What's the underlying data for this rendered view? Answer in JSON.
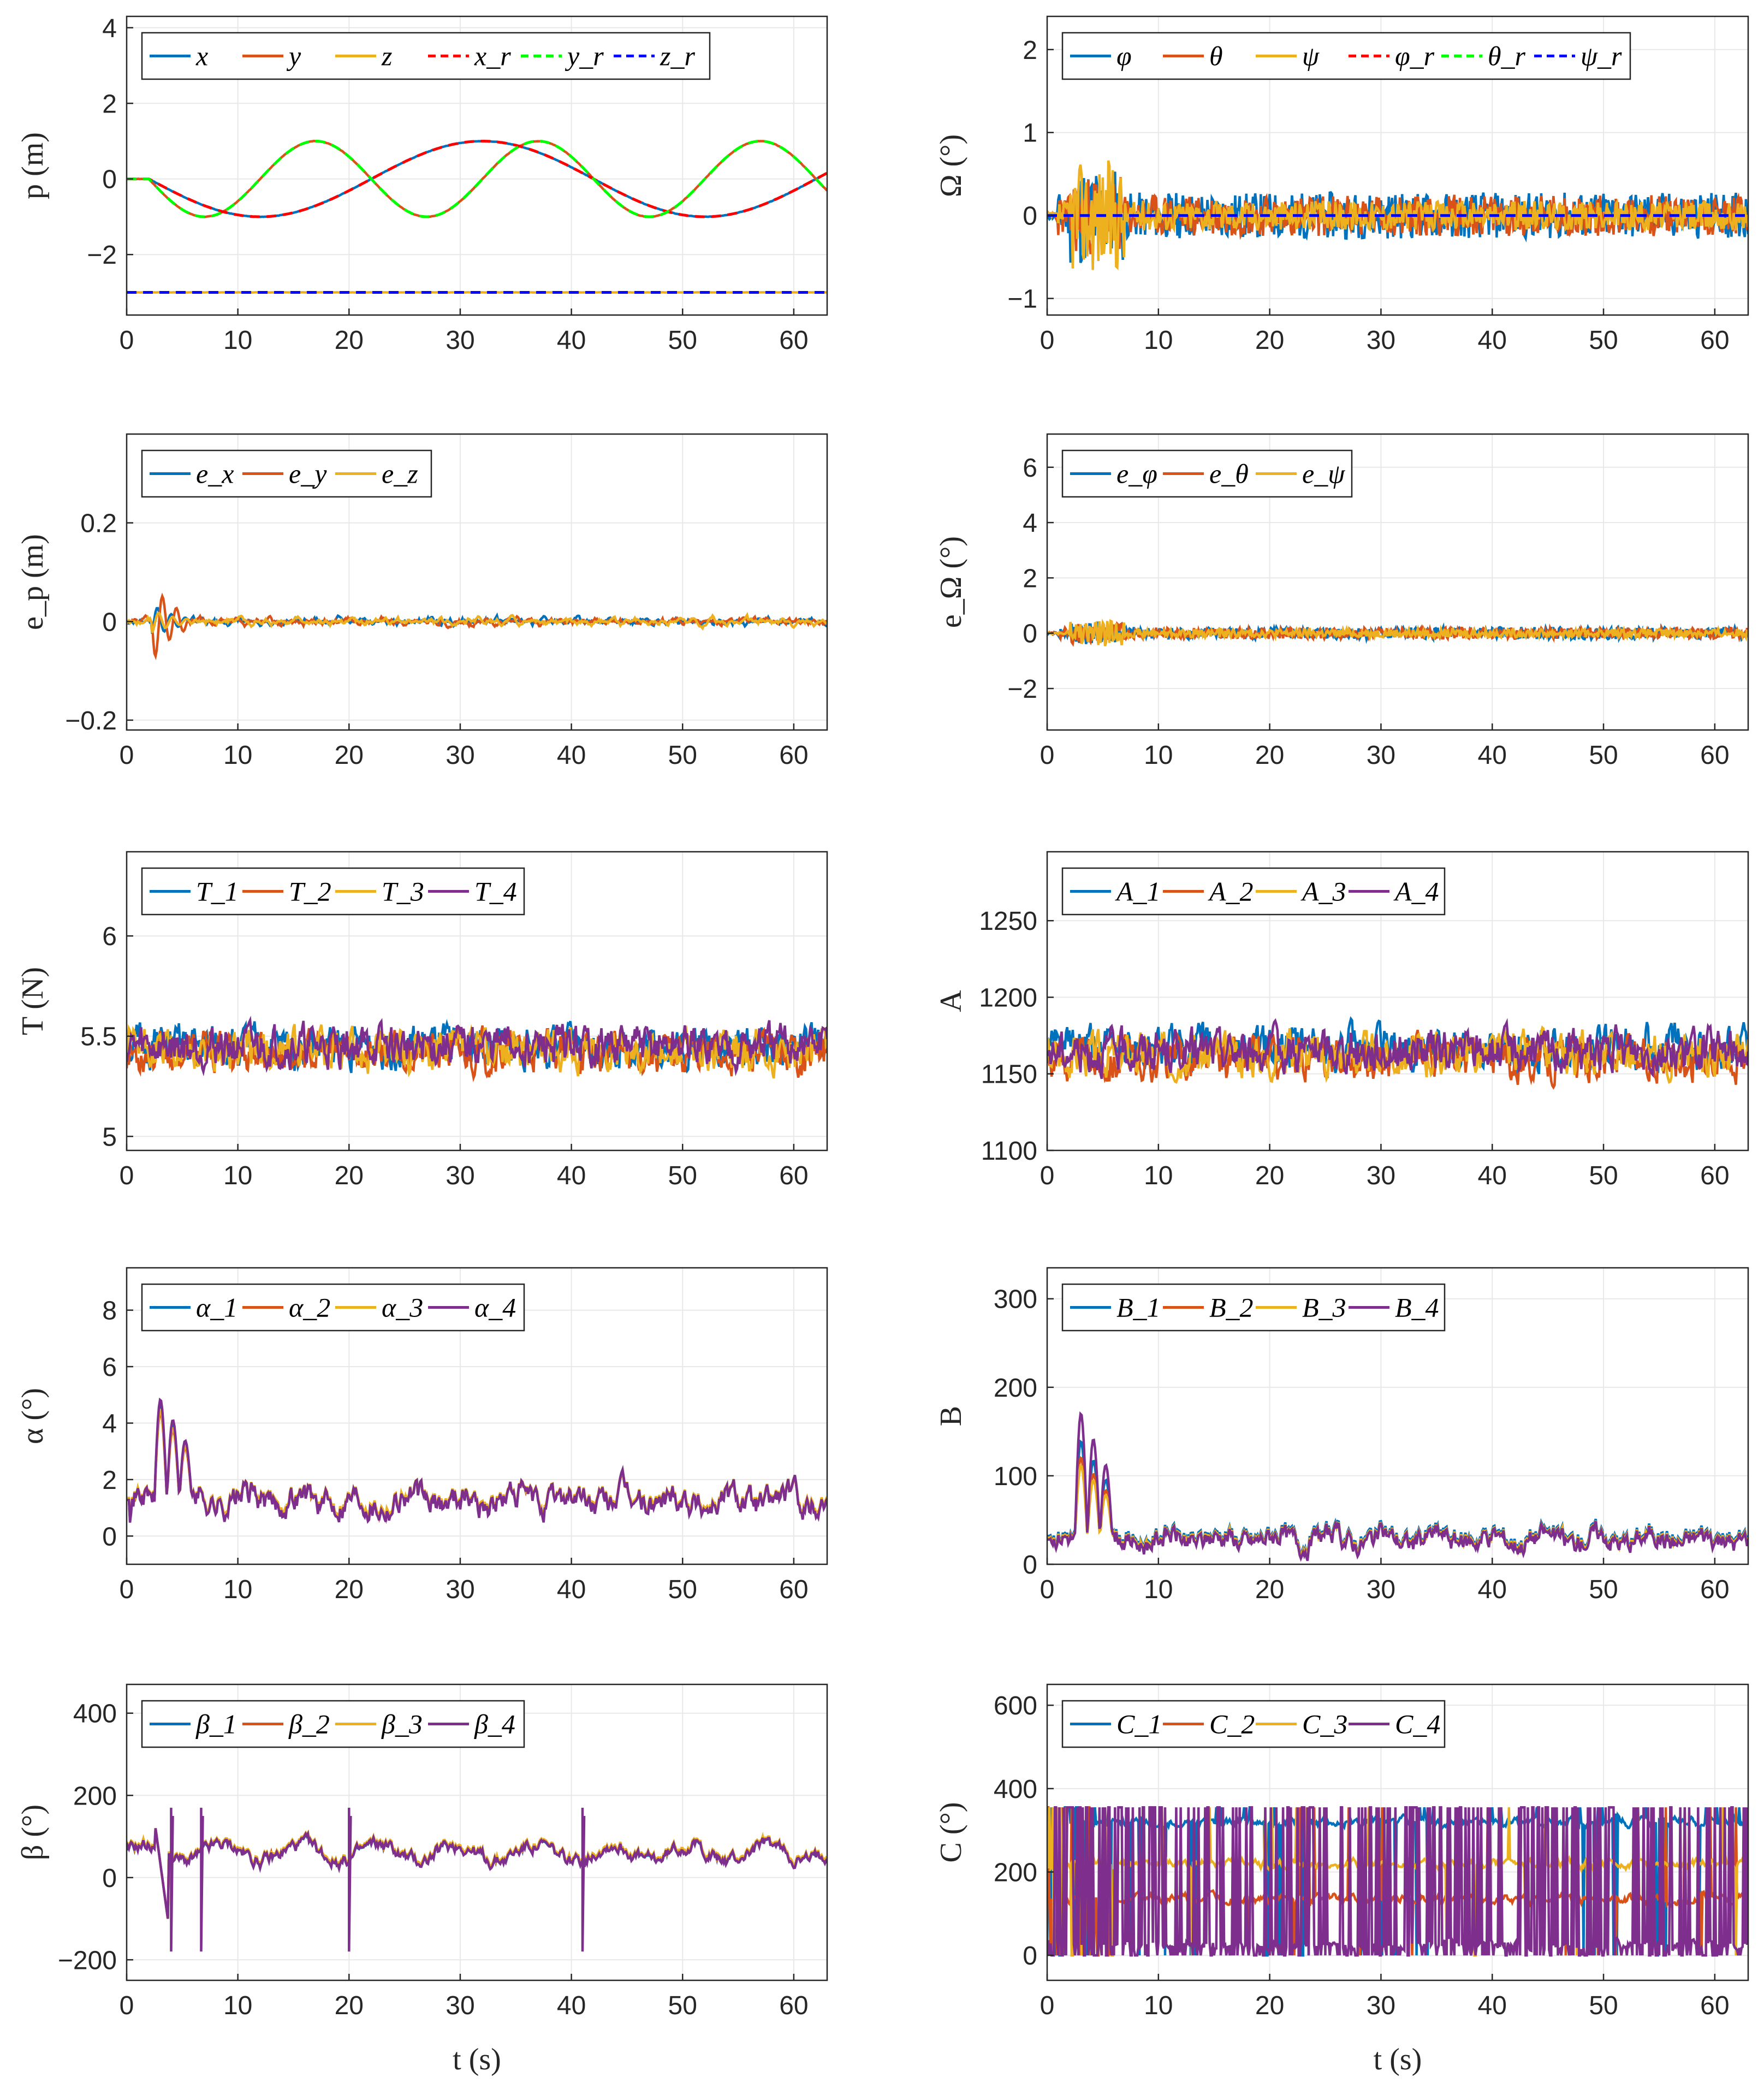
{
  "figure": {
    "xlabel": "t (s)",
    "colors": {
      "c1": "#0072BD",
      "c2": "#D95319",
      "c3": "#EDB120",
      "c4": "#7E2F8E",
      "ref_x": "#FF0000",
      "ref_y": "#00FF00",
      "ref_z": "#0000FF",
      "grid": "#e8e8e8",
      "axis": "#262626"
    }
  },
  "chart_data": [
    {
      "id": "p",
      "type": "line",
      "ylabel": "p (m)",
      "xlim": [
        0,
        63
      ],
      "ylim": [
        -3.6,
        4.3
      ],
      "xticks": [
        0,
        10,
        20,
        30,
        40,
        50,
        60
      ],
      "yticks": [
        -2,
        0,
        2,
        4
      ],
      "ytick_labels": [
        "−2",
        "0",
        "2",
        "4"
      ],
      "legend": [
        "x",
        "y",
        "z",
        "x_r",
        "y_r",
        "z_r"
      ],
      "series": [
        {
          "name": "x",
          "color": "c1",
          "dash": false,
          "formula": "sin_track",
          "params": {
            "period": 40,
            "phase": 0,
            "amp": 1,
            "delay": 2
          },
          "noise": 0.01
        },
        {
          "name": "y",
          "color": "c2",
          "dash": false,
          "formula": "sin_track",
          "params": {
            "period": 20,
            "phase": 0,
            "amp": 1,
            "delay": 2
          },
          "noise": 0.01
        },
        {
          "name": "z",
          "color": "c3",
          "dash": false,
          "formula": "const",
          "params": {
            "value": -3
          },
          "noise": 0.005
        },
        {
          "name": "x_r",
          "color": "ref_x",
          "dash": true,
          "formula": "sin_track",
          "params": {
            "period": 40,
            "phase": 0,
            "amp": 1,
            "delay": 2
          },
          "noise": 0
        },
        {
          "name": "y_r",
          "color": "ref_y",
          "dash": true,
          "formula": "sin_track",
          "params": {
            "period": 20,
            "phase": 0,
            "amp": 1,
            "delay": 2
          },
          "noise": 0
        },
        {
          "name": "z_r",
          "color": "ref_z",
          "dash": true,
          "formula": "const",
          "params": {
            "value": -3
          },
          "noise": 0
        }
      ]
    },
    {
      "id": "Omega",
      "type": "line",
      "ylabel": "Ω (°)",
      "xlim": [
        0,
        63
      ],
      "ylim": [
        -1.2,
        2.4
      ],
      "xticks": [
        0,
        10,
        20,
        30,
        40,
        50,
        60
      ],
      "yticks": [
        -1,
        0,
        1,
        2
      ],
      "ytick_labels": [
        "−1",
        "0",
        "1",
        "2"
      ],
      "legend": [
        "φ",
        "θ",
        "ψ",
        "φ_r",
        "θ_r",
        "ψ_r"
      ],
      "series": [
        {
          "name": "φ",
          "color": "c1",
          "formula": "noise",
          "params": {
            "amp": 0.28,
            "seed": 11,
            "burst": 0.4
          }
        },
        {
          "name": "θ",
          "color": "c2",
          "formula": "noise",
          "params": {
            "amp": 0.25,
            "seed": 23,
            "burst": 0.3
          }
        },
        {
          "name": "ψ",
          "color": "c3",
          "formula": "noise",
          "params": {
            "amp": 0.18,
            "seed": 37,
            "burst": 0.9
          }
        },
        {
          "name": "φ_r",
          "color": "ref_x",
          "dash": true,
          "formula": "const",
          "params": {
            "value": 0
          }
        },
        {
          "name": "θ_r",
          "color": "ref_y",
          "dash": true,
          "formula": "const",
          "params": {
            "value": 0
          }
        },
        {
          "name": "ψ_r",
          "color": "ref_z",
          "dash": true,
          "formula": "const",
          "params": {
            "value": 0
          }
        }
      ]
    },
    {
      "id": "ep",
      "type": "line",
      "ylabel": "e_p (m)",
      "xlim": [
        0,
        63
      ],
      "ylim": [
        -0.22,
        0.38
      ],
      "xticks": [
        0,
        10,
        20,
        30,
        40,
        50,
        60
      ],
      "yticks": [
        -0.2,
        0,
        0.2
      ],
      "ytick_labels": [
        "−0.2",
        "0",
        "0.2"
      ],
      "legend": [
        "e_x",
        "e_y",
        "e_z"
      ],
      "series": [
        {
          "name": "e_x",
          "color": "c1",
          "formula": "smooth_noise",
          "params": {
            "amp": 0.012,
            "seed": 5,
            "burst": 0.03
          }
        },
        {
          "name": "e_y",
          "color": "c2",
          "formula": "smooth_noise",
          "params": {
            "amp": 0.012,
            "seed": 9,
            "burst": 0.07
          }
        },
        {
          "name": "e_z",
          "color": "c3",
          "formula": "smooth_noise",
          "params": {
            "amp": 0.012,
            "seed": 17,
            "burst": 0.02
          }
        }
      ]
    },
    {
      "id": "eOmega",
      "type": "line",
      "ylabel": "e_Ω (°)",
      "xlim": [
        0,
        63
      ],
      "ylim": [
        -3.5,
        7.2
      ],
      "xticks": [
        0,
        10,
        20,
        30,
        40,
        50,
        60
      ],
      "yticks": [
        -2,
        0,
        2,
        4,
        6
      ],
      "ytick_labels": [
        "−2",
        "0",
        "2",
        "4",
        "6"
      ],
      "legend": [
        "e_φ",
        "e_θ",
        "e_ψ"
      ],
      "series": [
        {
          "name": "e_φ",
          "color": "c1",
          "formula": "noise",
          "params": {
            "amp": 0.22,
            "seed": 41,
            "burst": 0.3
          }
        },
        {
          "name": "e_θ",
          "color": "c2",
          "formula": "noise",
          "params": {
            "amp": 0.2,
            "seed": 43,
            "burst": 0.3
          }
        },
        {
          "name": "e_ψ",
          "color": "c3",
          "formula": "noise",
          "params": {
            "amp": 0.15,
            "seed": 47,
            "burst": 0.7
          }
        }
      ]
    },
    {
      "id": "T",
      "type": "line",
      "ylabel": "T (N)",
      "xlim": [
        0,
        63
      ],
      "ylim": [
        4.93,
        6.42
      ],
      "xticks": [
        0,
        10,
        20,
        30,
        40,
        50,
        60
      ],
      "yticks": [
        5,
        5.5,
        6
      ],
      "ytick_labels": [
        "5",
        "5.5",
        "6"
      ],
      "legend": [
        "T_1",
        "T_2",
        "T_3",
        "T_4"
      ],
      "series": [
        {
          "name": "T_1",
          "color": "c1",
          "formula": "level_noise",
          "params": {
            "mean": 5.45,
            "amp": 0.11,
            "seed": 51
          }
        },
        {
          "name": "T_2",
          "color": "c2",
          "formula": "level_noise",
          "params": {
            "mean": 5.42,
            "amp": 0.11,
            "seed": 53
          }
        },
        {
          "name": "T_3",
          "color": "c3",
          "formula": "level_noise",
          "params": {
            "mean": 5.43,
            "amp": 0.11,
            "seed": 57
          }
        },
        {
          "name": "T_4",
          "color": "c4",
          "formula": "level_noise",
          "params": {
            "mean": 5.45,
            "amp": 0.11,
            "seed": 59
          }
        }
      ]
    },
    {
      "id": "A",
      "type": "line",
      "ylabel": "A",
      "xlim": [
        0,
        63
      ],
      "ylim": [
        1100,
        1295
      ],
      "xticks": [
        0,
        10,
        20,
        30,
        40,
        50,
        60
      ],
      "yticks": [
        1100,
        1150,
        1200,
        1250
      ],
      "ytick_labels": [
        "1100",
        "1150",
        "1200",
        "1250"
      ],
      "legend": [
        "A_1",
        "A_2",
        "A_3",
        "A_4"
      ],
      "series": [
        {
          "name": "A_1",
          "color": "c1",
          "formula": "level_noise",
          "params": {
            "mean": 1167,
            "amp": 15,
            "seed": 61
          }
        },
        {
          "name": "A_2",
          "color": "c2",
          "formula": "level_noise",
          "params": {
            "mean": 1160,
            "amp": 15,
            "seed": 63
          }
        },
        {
          "name": "A_3",
          "color": "c3",
          "formula": "level_noise",
          "params": {
            "mean": 1163,
            "amp": 15,
            "seed": 67
          }
        },
        {
          "name": "A_4",
          "color": "c4",
          "formula": "level_noise",
          "params": {
            "mean": 1165,
            "amp": 15,
            "seed": 69
          }
        }
      ]
    },
    {
      "id": "alpha",
      "type": "line",
      "ylabel": "α (°)",
      "xlim": [
        0,
        63
      ],
      "ylim": [
        -1,
        9.5
      ],
      "xticks": [
        0,
        10,
        20,
        30,
        40,
        50,
        60
      ],
      "yticks": [
        0,
        2,
        4,
        6,
        8
      ],
      "ytick_labels": [
        "0",
        "2",
        "4",
        "6",
        "8"
      ],
      "legend": [
        "α_1",
        "α_2",
        "α_3",
        "α_4"
      ],
      "series": [
        {
          "name": "α_1",
          "color": "c1",
          "formula": "pos_noise",
          "params": {
            "mean": 1.3,
            "amp": 0.55,
            "seed": 71,
            "peak": 5
          }
        },
        {
          "name": "α_2",
          "color": "c2",
          "formula": "pos_noise",
          "params": {
            "mean": 1.3,
            "amp": 0.55,
            "seed": 71,
            "peak": 4.7
          }
        },
        {
          "name": "α_3",
          "color": "c3",
          "formula": "pos_noise",
          "params": {
            "mean": 1.35,
            "amp": 0.55,
            "seed": 71,
            "peak": 4.8
          }
        },
        {
          "name": "α_4",
          "color": "c4",
          "formula": "pos_noise",
          "params": {
            "mean": 1.28,
            "amp": 0.6,
            "seed": 71,
            "peak": 5.2
          }
        }
      ]
    },
    {
      "id": "B",
      "type": "line",
      "ylabel": "B",
      "xlim": [
        0,
        63
      ],
      "ylim": [
        0,
        335
      ],
      "xticks": [
        0,
        10,
        20,
        30,
        40,
        50,
        60
      ],
      "yticks": [
        0,
        100,
        200,
        300
      ],
      "ytick_labels": [
        "0",
        "100",
        "200",
        "300"
      ],
      "legend": [
        "B_1",
        "B_2",
        "B_3",
        "B_4"
      ],
      "series": [
        {
          "name": "B_1",
          "color": "c1",
          "formula": "pos_noise",
          "params": {
            "mean": 32,
            "amp": 14,
            "seed": 81,
            "peak": 150
          }
        },
        {
          "name": "B_2",
          "color": "c2",
          "formula": "pos_noise",
          "params": {
            "mean": 30,
            "amp": 14,
            "seed": 81,
            "peak": 130
          }
        },
        {
          "name": "B_3",
          "color": "c3",
          "formula": "pos_noise",
          "params": {
            "mean": 30,
            "amp": 14,
            "seed": 81,
            "peak": 120
          }
        },
        {
          "name": "B_4",
          "color": "c4",
          "formula": "pos_noise",
          "params": {
            "mean": 28,
            "amp": 15,
            "seed": 81,
            "peak": 185
          }
        }
      ]
    },
    {
      "id": "beta",
      "type": "line",
      "ylabel": "β (°)",
      "xlim": [
        0,
        63
      ],
      "ylim": [
        -250,
        470
      ],
      "xticks": [
        0,
        10,
        20,
        30,
        40,
        50,
        60
      ],
      "yticks": [
        -200,
        0,
        200,
        400
      ],
      "ytick_labels": [
        "−200",
        "0",
        "200",
        "400"
      ],
      "legend": [
        "β_1",
        "β_2",
        "β_3",
        "β_4"
      ],
      "series": [
        {
          "name": "β_1",
          "color": "c1",
          "formula": "beta",
          "params": {
            "mean": 60,
            "amp": 22,
            "seed": 91
          }
        },
        {
          "name": "β_2",
          "color": "c2",
          "formula": "beta",
          "params": {
            "mean": 62,
            "amp": 22,
            "seed": 91
          }
        },
        {
          "name": "β_3",
          "color": "c3",
          "formula": "beta",
          "params": {
            "mean": 65,
            "amp": 22,
            "seed": 91
          }
        },
        {
          "name": "β_4",
          "color": "c4",
          "formula": "beta",
          "params": {
            "mean": 60,
            "amp": 24,
            "seed": 91
          }
        }
      ],
      "spikes": [
        [
          4,
          -180
        ],
        [
          6.7,
          -180
        ],
        [
          20,
          -180
        ],
        [
          41,
          -180
        ]
      ]
    },
    {
      "id": "C",
      "type": "line",
      "ylabel": "C (°)",
      "xlim": [
        0,
        63
      ],
      "ylim": [
        -60,
        650
      ],
      "xticks": [
        0,
        10,
        20,
        30,
        40,
        50,
        60
      ],
      "yticks": [
        0,
        200,
        400,
        600
      ],
      "ytick_labels": [
        "0",
        "200",
        "400",
        "600"
      ],
      "legend": [
        "C_1",
        "C_2",
        "C_3",
        "C_4"
      ],
      "series": [
        {
          "name": "C_1",
          "color": "c1",
          "formula": "wrap",
          "params": {
            "mean": 320,
            "amp": 18,
            "seed": 101,
            "wraps": 0.08
          }
        },
        {
          "name": "C_2",
          "color": "c2",
          "formula": "wrap",
          "params": {
            "mean": 135,
            "amp": 18,
            "seed": 103,
            "wraps": 0.03
          }
        },
        {
          "name": "C_3",
          "color": "c3",
          "formula": "wrap",
          "params": {
            "mean": 220,
            "amp": 18,
            "seed": 107,
            "wraps": 0.04
          }
        },
        {
          "name": "C_4",
          "color": "c4",
          "formula": "wrap",
          "params": {
            "mean": 25,
            "amp": 18,
            "seed": 109,
            "wraps": 0.55
          }
        }
      ]
    }
  ]
}
